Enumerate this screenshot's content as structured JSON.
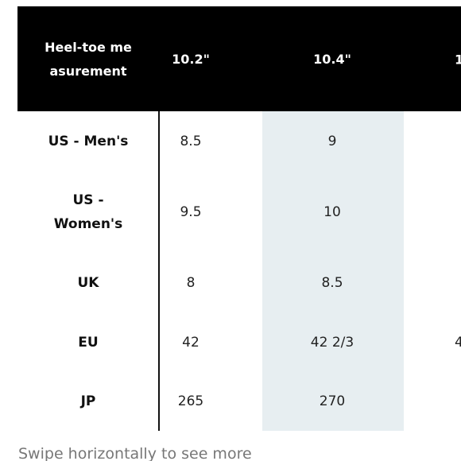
{
  "table": {
    "header": [
      "Heel-toe measurement",
      "10.2\"",
      "10.4\"",
      "1"
    ],
    "rows": [
      {
        "label": "US - Men's",
        "values": [
          "8.5",
          "9"
        ]
      },
      {
        "label": "US - Women's",
        "values": [
          "9.5",
          "10"
        ]
      },
      {
        "label": "UK",
        "values": [
          "8",
          "8.5"
        ]
      },
      {
        "label": "EU",
        "values": [
          "42",
          "42 2/3",
          "4"
        ]
      },
      {
        "label": "JP",
        "values": [
          "265",
          "270"
        ]
      }
    ]
  },
  "footer": "Swipe horizontally to see more"
}
